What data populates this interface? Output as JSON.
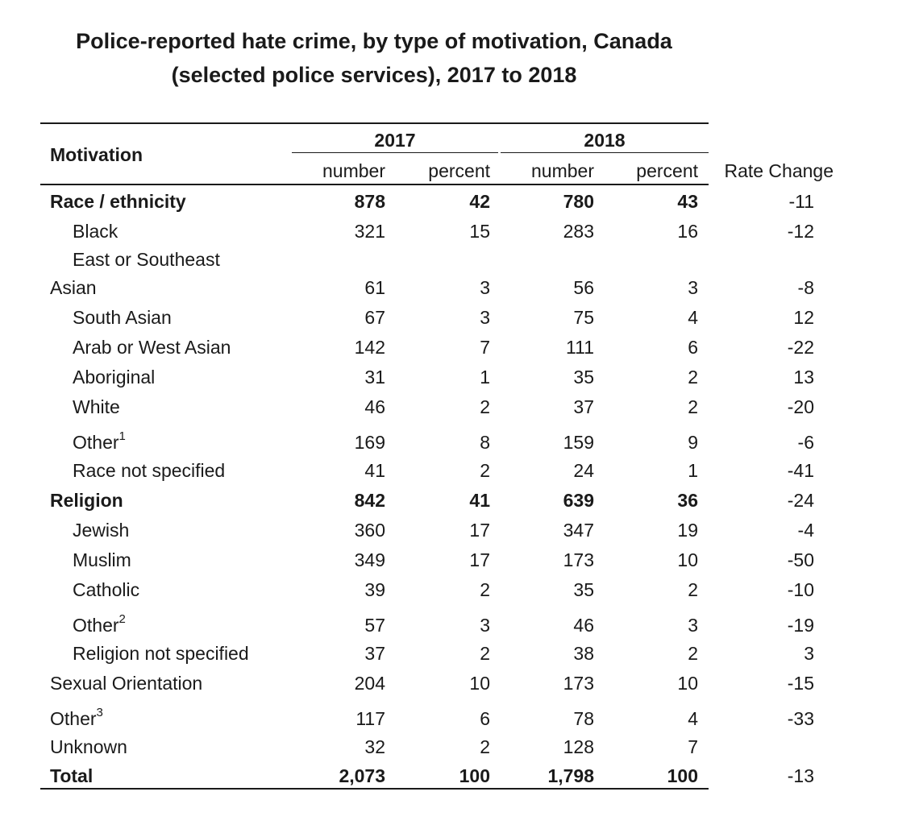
{
  "title": {
    "line1": "Police-reported hate crime, by type of motivation, Canada",
    "line2": "(selected police services), 2017 to 2018"
  },
  "header": {
    "motivation": "Motivation",
    "year_2017": "2017",
    "year_2018": "2018",
    "number": "number",
    "percent": "percent",
    "rate_change": "Rate Change"
  },
  "rows": [
    {
      "label": "Race / ethnicity",
      "sup": "",
      "indent": false,
      "bold": true,
      "n2017": "878",
      "p2017": "42",
      "n2018": "780",
      "p2018": "43",
      "rate": "-11"
    },
    {
      "label": "Black",
      "sup": "",
      "indent": true,
      "bold": false,
      "n2017": "321",
      "p2017": "15",
      "n2018": "283",
      "p2018": "16",
      "rate": "-12"
    },
    {
      "label": "East or Southeast",
      "sup": "",
      "indent": true,
      "bold": false,
      "n2017": "",
      "p2017": "",
      "n2018": "",
      "p2018": "",
      "rate": ""
    },
    {
      "label": "Asian",
      "sup": "",
      "indent": false,
      "bold": false,
      "n2017": "61",
      "p2017": "3",
      "n2018": "56",
      "p2018": "3",
      "rate": "-8"
    },
    {
      "label": "South Asian",
      "sup": "",
      "indent": true,
      "bold": false,
      "n2017": "67",
      "p2017": "3",
      "n2018": "75",
      "p2018": "4",
      "rate": "12"
    },
    {
      "label": "Arab or West Asian",
      "sup": "",
      "indent": true,
      "bold": false,
      "n2017": "142",
      "p2017": "7",
      "n2018": "111",
      "p2018": "6",
      "rate": "-22"
    },
    {
      "label": "Aboriginal",
      "sup": "",
      "indent": true,
      "bold": false,
      "n2017": "31",
      "p2017": "1",
      "n2018": "35",
      "p2018": "2",
      "rate": "13"
    },
    {
      "label": "White",
      "sup": "",
      "indent": true,
      "bold": false,
      "n2017": "46",
      "p2017": "2",
      "n2018": "37",
      "p2018": "2",
      "rate": "-20"
    },
    {
      "label": "Other",
      "sup": "1",
      "indent": true,
      "bold": false,
      "n2017": "169",
      "p2017": "8",
      "n2018": "159",
      "p2018": "9",
      "rate": "-6"
    },
    {
      "label": "Race not specified",
      "sup": "",
      "indent": true,
      "bold": false,
      "n2017": "41",
      "p2017": "2",
      "n2018": "24",
      "p2018": "1",
      "rate": "-41"
    },
    {
      "label": "Religion",
      "sup": "",
      "indent": false,
      "bold": true,
      "n2017": "842",
      "p2017": "41",
      "n2018": "639",
      "p2018": "36",
      "rate": "-24"
    },
    {
      "label": "Jewish",
      "sup": "",
      "indent": true,
      "bold": false,
      "n2017": "360",
      "p2017": "17",
      "n2018": "347",
      "p2018": "19",
      "rate": "-4"
    },
    {
      "label": "Muslim",
      "sup": "",
      "indent": true,
      "bold": false,
      "n2017": "349",
      "p2017": "17",
      "n2018": "173",
      "p2018": "10",
      "rate": "-50"
    },
    {
      "label": "Catholic",
      "sup": "",
      "indent": true,
      "bold": false,
      "n2017": "39",
      "p2017": "2",
      "n2018": "35",
      "p2018": "2",
      "rate": "-10"
    },
    {
      "label": "Other",
      "sup": "2",
      "indent": true,
      "bold": false,
      "n2017": "57",
      "p2017": "3",
      "n2018": "46",
      "p2018": "3",
      "rate": "-19"
    },
    {
      "label": "Religion not specified",
      "sup": "",
      "indent": true,
      "bold": false,
      "n2017": "37",
      "p2017": "2",
      "n2018": "38",
      "p2018": "2",
      "rate": "3"
    },
    {
      "label": "Sexual Orientation",
      "sup": "",
      "indent": false,
      "bold": false,
      "n2017": "204",
      "p2017": "10",
      "n2018": "173",
      "p2018": "10",
      "rate": "-15"
    },
    {
      "label": "Other",
      "sup": "3",
      "indent": false,
      "bold": false,
      "n2017": "117",
      "p2017": "6",
      "n2018": "78",
      "p2018": "4",
      "rate": "-33"
    },
    {
      "label": "Unknown",
      "sup": "",
      "indent": false,
      "bold": false,
      "n2017": "32",
      "p2017": "2",
      "n2018": "128",
      "p2018": "7",
      "rate": ""
    },
    {
      "label": "Total",
      "sup": "",
      "indent": false,
      "bold": true,
      "n2017": "2,073",
      "p2017": "100",
      "n2018": "1,798",
      "p2018": "100",
      "rate": "-13"
    }
  ]
}
